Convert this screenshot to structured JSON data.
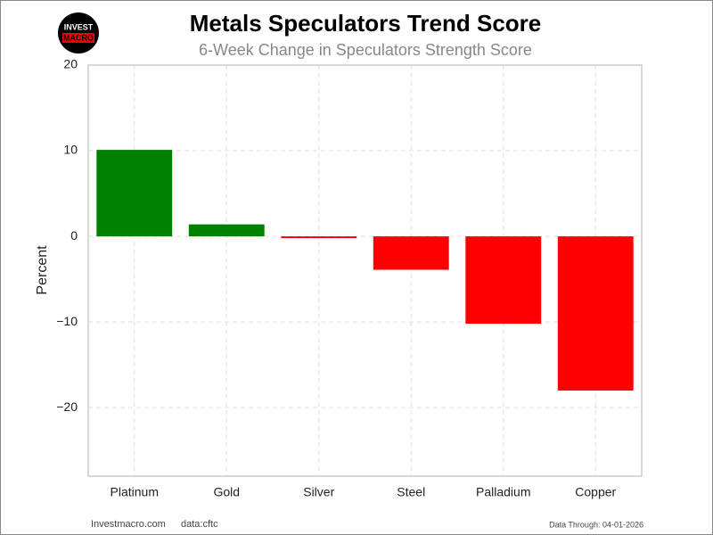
{
  "logo": {
    "line1": "INVEST",
    "line2": "MACRO"
  },
  "chart_data": {
    "type": "bar",
    "title": "Metals Speculators Trend Score",
    "subtitle": "6-Week Change in Speculators Strength Score",
    "y_label": "Percent",
    "categories": [
      "Platinum",
      "Gold",
      "Silver",
      "Steel",
      "Palladium",
      "Copper"
    ],
    "values": [
      10.1,
      1.4,
      -0.2,
      -3.9,
      -10.2,
      -18.0
    ],
    "colors": [
      "#008000",
      "#008000",
      "#ff0000",
      "#ff0000",
      "#ff0000",
      "#ff0000"
    ],
    "ylim": [
      -28,
      20
    ],
    "yticks": [
      {
        "value": -20,
        "label": "−20"
      },
      {
        "value": -10,
        "label": "−10"
      },
      0,
      10,
      20
    ],
    "grid": true
  },
  "footer": {
    "site": "Investmacro.com",
    "source": "data:cftc",
    "date": "Data Through: 04-01-2026"
  }
}
